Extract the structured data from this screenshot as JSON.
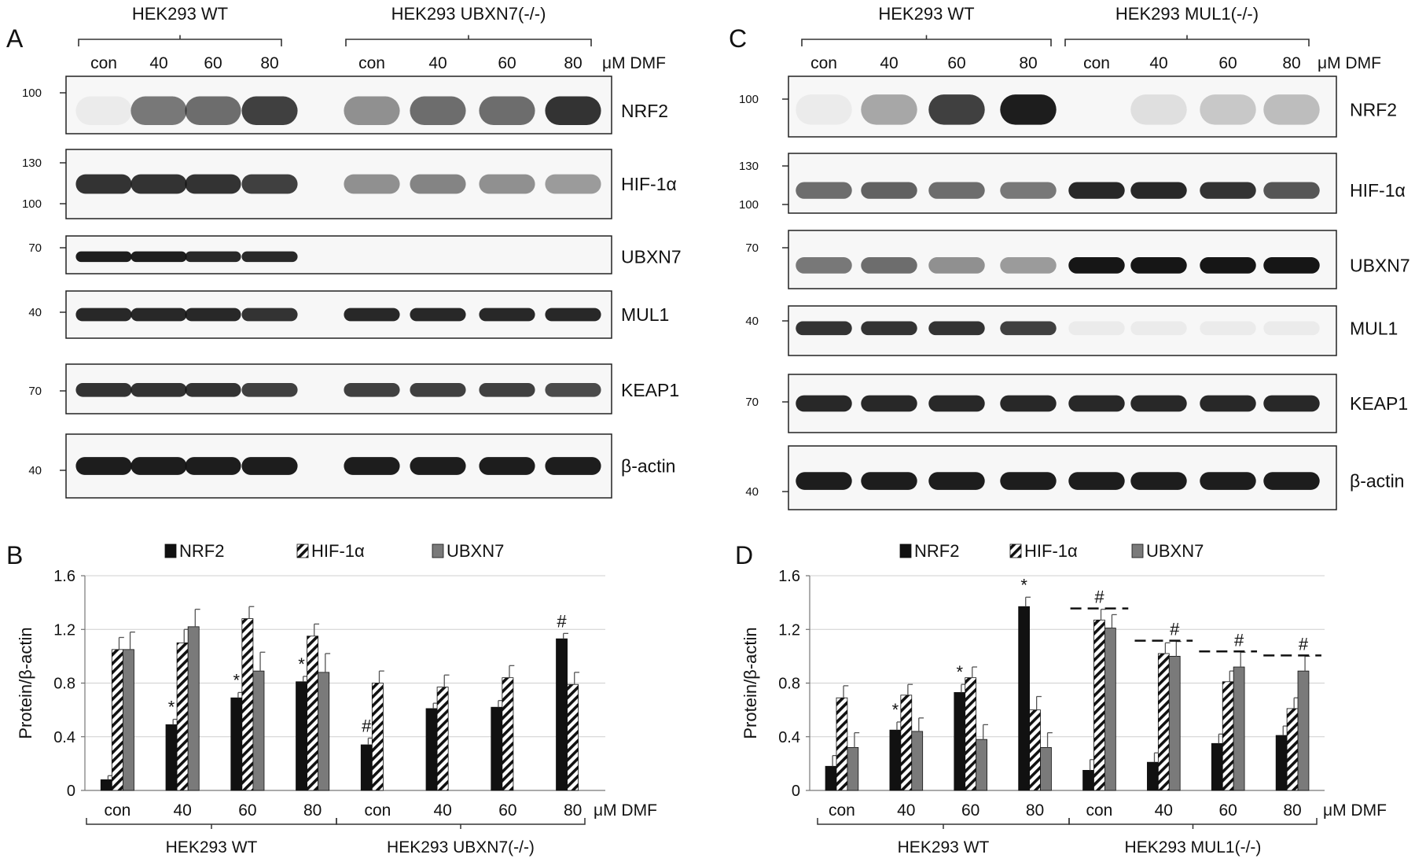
{
  "panels": {
    "A": {
      "letter": "A",
      "groups": [
        "HEK293 WT",
        "HEK293 UBXN7(-/-)"
      ],
      "lanes": [
        "con",
        "40",
        "60",
        "80",
        "con",
        "40",
        "60",
        "80"
      ],
      "unit": "μM  DMF",
      "blots": [
        {
          "protein": "NRF2",
          "mw": [
            "100"
          ],
          "lane_intensity": [
            0.05,
            0.55,
            0.6,
            0.8,
            0.45,
            0.6,
            0.6,
            0.85
          ]
        },
        {
          "protein": "HIF-1α",
          "mw": [
            "130",
            "100"
          ],
          "lane_intensity": [
            0.85,
            0.85,
            0.85,
            0.8,
            0.45,
            0.5,
            0.45,
            0.4
          ]
        },
        {
          "protein": "UBXN7",
          "mw": [
            "70"
          ],
          "lane_intensity": [
            0.95,
            0.95,
            0.9,
            0.9,
            0,
            0,
            0,
            0
          ]
        },
        {
          "protein": "MUL1",
          "mw": [
            "40"
          ],
          "lane_intensity": [
            0.9,
            0.9,
            0.9,
            0.85,
            0.9,
            0.9,
            0.9,
            0.9
          ]
        },
        {
          "protein": "KEAP1",
          "mw": [
            "70"
          ],
          "lane_intensity": [
            0.85,
            0.85,
            0.85,
            0.8,
            0.8,
            0.8,
            0.8,
            0.75
          ]
        },
        {
          "protein": "β-actin",
          "mw": [
            "40"
          ],
          "lane_intensity": [
            0.95,
            0.95,
            0.95,
            0.95,
            0.95,
            0.95,
            0.95,
            0.95
          ]
        }
      ]
    },
    "C": {
      "letter": "C",
      "groups": [
        "HEK293 WT",
        "HEK293 MUL1(-/-)"
      ],
      "lanes": [
        "con",
        "40",
        "60",
        "80",
        "con",
        "40",
        "60",
        "80"
      ],
      "unit": "μM  DMF",
      "blots": [
        {
          "protein": "NRF2",
          "mw": [
            "100"
          ],
          "lane_intensity": [
            0.05,
            0.35,
            0.8,
            0.95,
            0,
            0.1,
            0.2,
            0.25
          ]
        },
        {
          "protein": "HIF-1α",
          "mw": [
            "130",
            "100"
          ],
          "lane_intensity": [
            0.6,
            0.65,
            0.6,
            0.55,
            0.9,
            0.9,
            0.85,
            0.7
          ]
        },
        {
          "protein": "UBXN7",
          "mw": [
            "70"
          ],
          "lane_intensity": [
            0.55,
            0.6,
            0.45,
            0.4,
            0.98,
            0.98,
            0.98,
            0.98
          ]
        },
        {
          "protein": "MUL1",
          "mw": [
            "40"
          ],
          "lane_intensity": [
            0.85,
            0.85,
            0.85,
            0.8,
            0.05,
            0.05,
            0.05,
            0.05
          ]
        },
        {
          "protein": "KEAP1",
          "mw": [
            "70"
          ],
          "lane_intensity": [
            0.9,
            0.9,
            0.9,
            0.9,
            0.9,
            0.9,
            0.9,
            0.9
          ]
        },
        {
          "protein": "β-actin",
          "mw": [
            "40"
          ],
          "lane_intensity": [
            0.95,
            0.95,
            0.95,
            0.95,
            0.95,
            0.95,
            0.95,
            0.95
          ]
        }
      ]
    }
  },
  "chart_data": [
    {
      "panel": "B",
      "type": "bar",
      "ylabel": "Protein/β-actin",
      "ylim": [
        0,
        1.6
      ],
      "yticks": [
        "0",
        "0.4",
        "0.8",
        "1.2",
        "1.6"
      ],
      "categories": [
        "con",
        "40",
        "60",
        "80",
        "con",
        "40",
        "60",
        "80"
      ],
      "xunit": "μM DMF",
      "groups": [
        "HEK293 WT",
        "HEK293 UBXN7(-/-)"
      ],
      "legend": [
        "NRF2",
        "HIF-1α",
        "UBXN7"
      ],
      "series": [
        {
          "name": "NRF2",
          "values": [
            0.08,
            0.49,
            0.69,
            0.81,
            0.34,
            0.61,
            0.62,
            1.13
          ],
          "errors": [
            0.03,
            0.04,
            0.04,
            0.04,
            0.05,
            0.04,
            0.05,
            0.04
          ]
        },
        {
          "name": "HIF-1α",
          "values": [
            1.05,
            1.1,
            1.28,
            1.15,
            0.8,
            0.77,
            0.84,
            0.79
          ],
          "errors": [
            0.09,
            0.1,
            0.09,
            0.09,
            0.09,
            0.09,
            0.09,
            0.09
          ]
        },
        {
          "name": "UBXN7",
          "values": [
            1.05,
            1.22,
            0.89,
            0.88,
            0,
            0,
            0,
            0
          ],
          "errors": [
            0.13,
            0.13,
            0.14,
            0.14,
            0,
            0,
            0,
            0
          ]
        }
      ],
      "annotations": [
        {
          "text": "*",
          "category": 1
        },
        {
          "text": "*",
          "category": 2
        },
        {
          "text": "*",
          "category": 3
        },
        {
          "text": "#",
          "category": 4
        },
        {
          "text": "#",
          "category": 7
        }
      ]
    },
    {
      "panel": "D",
      "type": "bar",
      "ylabel": "Protein/β-actin",
      "ylim": [
        0,
        1.6
      ],
      "yticks": [
        "0",
        "0.4",
        "0.8",
        "1.2",
        "1.6"
      ],
      "categories": [
        "con",
        "40",
        "60",
        "80",
        "con",
        "40",
        "60",
        "80"
      ],
      "xunit": "μM DMF",
      "groups": [
        "HEK293 WT",
        "HEK293 MUL1(-/-)"
      ],
      "legend": [
        "NRF2",
        "HIF-1α",
        "UBXN7"
      ],
      "series": [
        {
          "name": "NRF2",
          "values": [
            0.18,
            0.45,
            0.73,
            1.37,
            0.15,
            0.21,
            0.35,
            0.41
          ],
          "errors": [
            0.08,
            0.06,
            0.06,
            0.07,
            0.08,
            0.07,
            0.07,
            0.07
          ]
        },
        {
          "name": "HIF-1α",
          "values": [
            0.69,
            0.71,
            0.84,
            0.6,
            1.27,
            1.02,
            0.81,
            0.61
          ],
          "errors": [
            0.09,
            0.08,
            0.08,
            0.1,
            0.08,
            0.08,
            0.08,
            0.08
          ]
        },
        {
          "name": "UBXN7",
          "values": [
            0.32,
            0.44,
            0.38,
            0.32,
            1.21,
            1.0,
            0.92,
            0.89
          ],
          "errors": [
            0.11,
            0.1,
            0.11,
            0.11,
            0.1,
            0.11,
            0.11,
            0.11
          ]
        }
      ],
      "annotations": [
        {
          "text": "*",
          "category": 1
        },
        {
          "text": "*",
          "category": 2
        },
        {
          "text": "*",
          "category": 3
        },
        {
          "text": "#",
          "category": 4
        },
        {
          "text": "#",
          "category": 5
        },
        {
          "text": "#",
          "category": 6
        },
        {
          "text": "#",
          "category": 7
        }
      ]
    }
  ]
}
